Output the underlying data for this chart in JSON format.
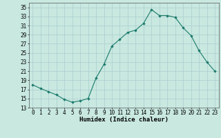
{
  "x": [
    0,
    1,
    2,
    3,
    4,
    5,
    6,
    7,
    8,
    9,
    10,
    11,
    12,
    13,
    14,
    15,
    16,
    17,
    18,
    19,
    20,
    21,
    22,
    23
  ],
  "y": [
    18.0,
    17.2,
    16.5,
    15.8,
    14.8,
    14.2,
    14.5,
    15.0,
    19.5,
    22.5,
    26.5,
    28.0,
    29.5,
    30.0,
    31.5,
    34.5,
    33.2,
    33.2,
    32.8,
    30.5,
    28.8,
    25.5,
    23.0,
    21.0
  ],
  "line_color": "#1a7a6a",
  "marker_color": "#1a7a6a",
  "bg_color": "#c8e8e0",
  "grid_color": "#aacece",
  "xlabel": "Humidex (Indice chaleur)",
  "xlim": [
    -0.5,
    23.5
  ],
  "ylim": [
    13,
    36
  ],
  "yticks": [
    13,
    15,
    17,
    19,
    21,
    23,
    25,
    27,
    29,
    31,
    33,
    35
  ],
  "xticks": [
    0,
    1,
    2,
    3,
    4,
    5,
    6,
    7,
    8,
    9,
    10,
    11,
    12,
    13,
    14,
    15,
    16,
    17,
    18,
    19,
    20,
    21,
    22,
    23
  ],
  "axis_fontsize": 5.5,
  "label_fontsize": 6.5
}
